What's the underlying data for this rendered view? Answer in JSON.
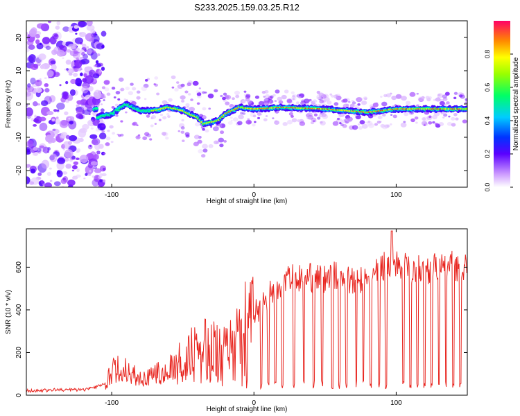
{
  "page": {
    "title": "S233.2025.159.03.25.R12"
  },
  "chart_data": [
    {
      "type": "heatmap",
      "xlabel": "Height of straight line (km)",
      "ylabel": "Frequency (Hz)",
      "xlim": [
        -160,
        150
      ],
      "ylim": [
        -25,
        25
      ],
      "xticks": [
        -100,
        0,
        100
      ],
      "yticks": [
        -20,
        -10,
        0,
        10,
        20
      ],
      "colorbar": {
        "label": "Normalized spectral amplitude",
        "range": [
          0,
          1
        ],
        "ticks": [
          0.0,
          0.2,
          0.4,
          0.6,
          0.8
        ]
      },
      "ridge": [
        {
          "x": -110,
          "y": -4
        },
        {
          "x": -100,
          "y": -3
        },
        {
          "x": -90,
          "y": 0
        },
        {
          "x": -80,
          "y": -2
        },
        {
          "x": -70,
          "y": -2
        },
        {
          "x": -60,
          "y": -1
        },
        {
          "x": -50,
          "y": -2
        },
        {
          "x": -40,
          "y": -4
        },
        {
          "x": -35,
          "y": -6
        },
        {
          "x": -25,
          "y": -5
        },
        {
          "x": -20,
          "y": -3
        },
        {
          "x": -10,
          "y": -1
        },
        {
          "x": 0,
          "y": -1.5
        },
        {
          "x": 20,
          "y": -1
        },
        {
          "x": 50,
          "y": -1.5
        },
        {
          "x": 80,
          "y": -2.5
        },
        {
          "x": 100,
          "y": -1.5
        },
        {
          "x": 130,
          "y": -1.5
        },
        {
          "x": 150,
          "y": -1.5
        }
      ]
    },
    {
      "type": "line",
      "xlabel": "Height of straight line (km)",
      "ylabel": "SNR (10 * v/v)",
      "xlim": [
        -160,
        150
      ],
      "ylim": [
        0,
        780
      ],
      "xticks": [
        -100,
        0,
        100
      ],
      "yticks": [
        0,
        200,
        400,
        600
      ],
      "color": "#e8251f",
      "series": [
        {
          "x": [
            -160,
            -140,
            -120,
            -105,
            -100,
            -95,
            -90,
            -85,
            -80,
            -75,
            -70,
            -65,
            -60,
            -55,
            -50,
            -45,
            -40,
            -35,
            -30,
            -25,
            -20,
            -15,
            -10,
            -5,
            0,
            5,
            10,
            15,
            20,
            25,
            30,
            35,
            40,
            45,
            50,
            55,
            60,
            65,
            70,
            75,
            80,
            85,
            90,
            95,
            100,
            105,
            110,
            115,
            120,
            125,
            130,
            135,
            140,
            145,
            150
          ],
          "y": [
            20,
            25,
            25,
            50,
            110,
            130,
            120,
            100,
            90,
            80,
            90,
            110,
            140,
            160,
            180,
            200,
            230,
            240,
            220,
            250,
            260,
            240,
            320,
            360,
            380,
            420,
            470,
            500,
            540,
            560,
            550,
            540,
            550,
            560,
            540,
            560,
            550,
            560,
            520,
            540,
            530,
            560,
            600,
            620,
            610,
            600,
            590,
            600,
            580,
            600,
            590,
            600,
            610,
            600,
            590
          ]
        }
      ],
      "dips": [
        -5,
        5,
        10,
        15,
        20,
        28,
        35,
        42,
        48,
        55,
        60,
        65,
        72,
        77,
        82,
        88,
        93,
        105,
        110,
        115,
        120,
        125,
        130,
        135,
        140,
        145
      ]
    }
  ]
}
